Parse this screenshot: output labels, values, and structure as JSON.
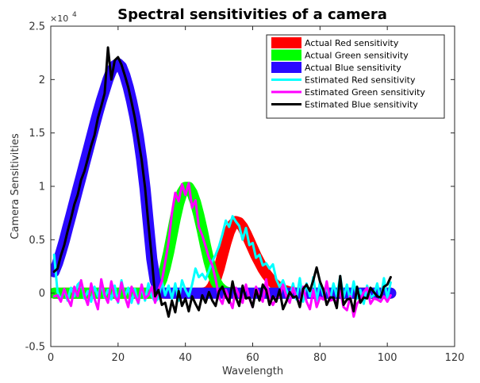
{
  "chart_data": {
    "type": "line",
    "title": "Spectral sensitivities of a camera",
    "xlabel": "Wavelength",
    "ylabel": "Camera Sensitivities",
    "exponent_label": "×10",
    "exponent_power": "4",
    "xlim": [
      0,
      120
    ],
    "ylim": [
      -5000,
      25000
    ],
    "xticks": [
      0,
      20,
      40,
      60,
      80,
      100,
      120
    ],
    "xtick_labels": [
      "0",
      "20",
      "40",
      "60",
      "80",
      "100",
      "120"
    ],
    "yticks": [
      -5000,
      0,
      5000,
      10000,
      15000,
      20000,
      25000
    ],
    "ytick_labels": [
      "-0.5",
      "0",
      "0.5",
      "1",
      "1.5",
      "2",
      "2.5"
    ],
    "grid": false,
    "legend_position": "top-right",
    "x": [
      1,
      2,
      3,
      4,
      5,
      6,
      7,
      8,
      9,
      10,
      11,
      12,
      13,
      14,
      15,
      16,
      17,
      18,
      19,
      20,
      21,
      22,
      23,
      24,
      25,
      26,
      27,
      28,
      29,
      30,
      31,
      32,
      33,
      34,
      35,
      36,
      37,
      38,
      39,
      40,
      41,
      42,
      43,
      44,
      45,
      46,
      47,
      48,
      49,
      50,
      51,
      52,
      53,
      54,
      55,
      56,
      57,
      58,
      59,
      60,
      61,
      62,
      63,
      64,
      65,
      66,
      67,
      68,
      69,
      70,
      71,
      72,
      73,
      74,
      75,
      76,
      77,
      78,
      79,
      80,
      81,
      82,
      83,
      84,
      85,
      86,
      87,
      88,
      89,
      90,
      91,
      92,
      93,
      94,
      95,
      96,
      97,
      98,
      99,
      100,
      101
    ],
    "series": [
      {
        "name": "Actual Red sensitivity",
        "color": "#ff0000",
        "line_width": 14,
        "values": [
          0,
          0,
          0,
          0,
          0,
          0,
          0,
          0,
          0,
          0,
          0,
          0,
          0,
          0,
          0,
          0,
          0,
          0,
          0,
          0,
          0,
          0,
          0,
          0,
          0,
          0,
          0,
          0,
          0,
          0,
          0,
          0,
          0,
          0,
          0,
          0,
          0,
          0,
          0,
          0,
          0,
          0,
          0,
          0,
          0,
          50,
          200,
          600,
          1300,
          2300,
          3500,
          4700,
          5700,
          6400,
          6700,
          6600,
          6200,
          5600,
          4900,
          4200,
          3500,
          2900,
          2300,
          1800,
          1400,
          1000,
          700,
          500,
          300,
          200,
          100,
          50,
          0,
          0,
          0,
          0,
          0,
          0,
          0,
          0,
          0,
          0,
          0,
          0,
          0,
          0,
          0,
          0,
          0,
          0,
          0,
          0,
          0,
          0,
          0,
          0,
          0,
          0,
          0,
          0,
          0
        ]
      },
      {
        "name": "Actual Green sensitivity",
        "color": "#00ff00",
        "line_width": 14,
        "values": [
          0,
          0,
          0,
          0,
          0,
          0,
          0,
          0,
          0,
          0,
          0,
          0,
          0,
          0,
          0,
          0,
          0,
          0,
          0,
          0,
          0,
          0,
          0,
          0,
          0,
          0,
          0,
          0,
          0,
          50,
          200,
          600,
          1300,
          2400,
          3800,
          5400,
          7000,
          8400,
          9400,
          9900,
          9900,
          9400,
          8500,
          7300,
          5900,
          4400,
          3000,
          1900,
          1100,
          600,
          300,
          100,
          50,
          0,
          0,
          0,
          0,
          0,
          0,
          0,
          0,
          0,
          0,
          0,
          0,
          0,
          0,
          0,
          0,
          0,
          0,
          0,
          0,
          0,
          0,
          0,
          0,
          0,
          0,
          0,
          0,
          0,
          0,
          0,
          0,
          0,
          0,
          0,
          0,
          0,
          0,
          0,
          0,
          0,
          0,
          0,
          0,
          0,
          0,
          0,
          0
        ]
      },
      {
        "name": "Actual Blue sensitivity",
        "color": "#2a0aff",
        "line_width": 14,
        "values": [
          2000,
          2800,
          3800,
          4900,
          6100,
          7300,
          8500,
          9700,
          10900,
          12100,
          13300,
          14500,
          15700,
          16900,
          18000,
          19000,
          20000,
          20800,
          21300,
          21500,
          21200,
          20400,
          19300,
          18000,
          16500,
          14700,
          12500,
          9800,
          6500,
          3200,
          1200,
          300,
          50,
          0,
          0,
          0,
          0,
          0,
          0,
          0,
          0,
          0,
          0,
          0,
          0,
          0,
          0,
          0,
          0,
          0,
          0,
          0,
          0,
          0,
          0,
          0,
          0,
          0,
          0,
          0,
          0,
          0,
          0,
          0,
          0,
          0,
          0,
          0,
          0,
          0,
          0,
          0,
          0,
          0,
          0,
          0,
          0,
          0,
          0,
          0,
          0,
          0,
          0,
          0,
          0,
          0,
          0,
          0,
          0,
          0,
          0,
          0,
          0,
          0,
          0,
          0,
          0,
          0,
          0,
          0,
          0
        ]
      },
      {
        "name": "Estimated Red sensitivity",
        "color": "#00ffff",
        "line_width": 3,
        "values": [
          3600,
          100,
          -600,
          300,
          -700,
          500,
          -300,
          800,
          1100,
          -500,
          200,
          -800,
          600,
          -300,
          900,
          -400,
          300,
          -600,
          700,
          -900,
          1200,
          -300,
          500,
          -900,
          400,
          -1000,
          600,
          -700,
          900,
          -300,
          -800,
          -500,
          1100,
          -200,
          700,
          -500,
          900,
          -700,
          1200,
          300,
          -300,
          800,
          2300,
          1500,
          1800,
          1300,
          2100,
          3000,
          3600,
          4400,
          5500,
          6800,
          6200,
          7200,
          6700,
          6300,
          5000,
          6100,
          4500,
          4700,
          3300,
          3600,
          2600,
          2800,
          2300,
          2700,
          1300,
          600,
          1200,
          300,
          -400,
          900,
          -600,
          1400,
          -800,
          900,
          -300,
          1500,
          -700,
          1000,
          -200,
          500,
          -600,
          900,
          -300,
          1600,
          -400,
          800,
          -700,
          1100,
          -500,
          300,
          -1000,
          700,
          -400,
          -200,
          900,
          -600,
          1400,
          -500,
          1000
        ]
      },
      {
        "name": "Estimated Green sensitivity",
        "color": "#ff00ff",
        "line_width": 3,
        "values": [
          -300,
          -200,
          -800,
          400,
          -500,
          -1200,
          600,
          -300,
          1200,
          -200,
          -1100,
          900,
          -500,
          -1500,
          1300,
          -200,
          -900,
          1100,
          -300,
          -800,
          1000,
          -300,
          -1300,
          600,
          -200,
          -900,
          800,
          -500,
          -200,
          600,
          -900,
          300,
          1100,
          2900,
          4800,
          7500,
          9400,
          8600,
          10200,
          9200,
          10300,
          8000,
          8700,
          6200,
          5400,
          4400,
          3300,
          2600,
          1300,
          -400,
          -1000,
          300,
          -600,
          -1400,
          500,
          -300,
          -900,
          800,
          -500,
          -1300,
          600,
          -200,
          -800,
          1300,
          -500,
          -1100,
          -500,
          -300,
          800,
          -300,
          -900,
          500,
          -400,
          -1000,
          600,
          -800,
          -1500,
          300,
          -1300,
          -400,
          -600,
          1100,
          -700,
          -600,
          -800,
          200,
          -1300,
          -1600,
          -300,
          -2200,
          -1000,
          -600,
          100,
          500,
          -1000,
          -500,
          -600,
          -800,
          -300,
          -800,
          -200
        ]
      },
      {
        "name": "Estimated Blue sensitivity",
        "color": "#000000",
        "line_width": 3,
        "values": [
          2000,
          2300,
          3500,
          4500,
          5800,
          7000,
          8300,
          9200,
          10600,
          11400,
          12600,
          13800,
          14800,
          16400,
          17500,
          18700,
          23000,
          20000,
          21800,
          22100,
          21400,
          20400,
          19300,
          17900,
          16400,
          14400,
          12500,
          9900,
          6500,
          3300,
          -300,
          300,
          -1100,
          -900,
          -2200,
          -700,
          -1800,
          200,
          -1200,
          -500,
          -1700,
          -300,
          -1000,
          -1600,
          -200,
          -900,
          100,
          -700,
          -1200,
          200,
          600,
          -300,
          -900,
          1100,
          -400,
          -1200,
          700,
          -500,
          -400,
          -1300,
          300,
          -700,
          800,
          300,
          -1100,
          -300,
          -800,
          300,
          -1500,
          -800,
          100,
          -400,
          -300,
          -1300,
          400,
          800,
          200,
          1200,
          2400,
          1100,
          300,
          -1100,
          -400,
          -400,
          -1400,
          1600,
          -1100,
          -600,
          -500,
          -1700,
          600,
          -900,
          -400,
          -500,
          500,
          100,
          -300,
          -400,
          600,
          800,
          1500
        ]
      }
    ]
  }
}
